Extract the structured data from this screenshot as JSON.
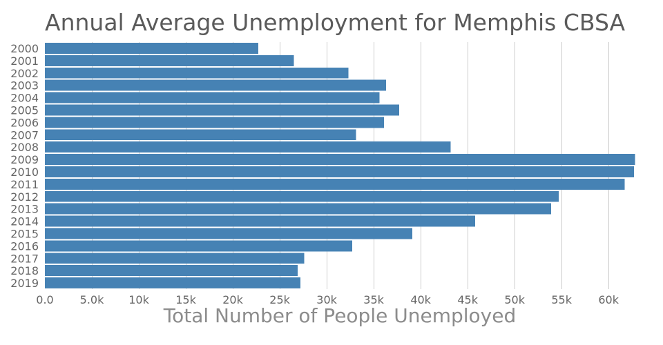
{
  "chart_data": {
    "type": "bar",
    "orientation": "horizontal",
    "title": "Annual Average Unemployment for Memphis CBSA",
    "xlabel": "Total Number of People Unemployed",
    "ylabel": "",
    "categories": [
      "2000",
      "2001",
      "2002",
      "2003",
      "2004",
      "2005",
      "2006",
      "2007",
      "2008",
      "2009",
      "2010",
      "2011",
      "2012",
      "2013",
      "2014",
      "2015",
      "2016",
      "2017",
      "2018",
      "2019"
    ],
    "values": [
      22700,
      26500,
      32300,
      36300,
      35600,
      37700,
      36100,
      33100,
      43200,
      62800,
      62700,
      61700,
      54700,
      53900,
      45800,
      39100,
      32700,
      27600,
      26900,
      27200
    ],
    "xlim": [
      0,
      63000
    ],
    "x_ticks": [
      0,
      5000,
      10000,
      15000,
      20000,
      25000,
      30000,
      35000,
      40000,
      45000,
      50000,
      55000,
      60000
    ],
    "x_tick_labels": [
      "0.0",
      "5.0k",
      "10k",
      "15k",
      "20k",
      "25k",
      "30k",
      "35k",
      "40k",
      "45k",
      "50k",
      "55k",
      "60k"
    ],
    "grid": true,
    "legend": "none",
    "bar_color": "#4682b4"
  }
}
